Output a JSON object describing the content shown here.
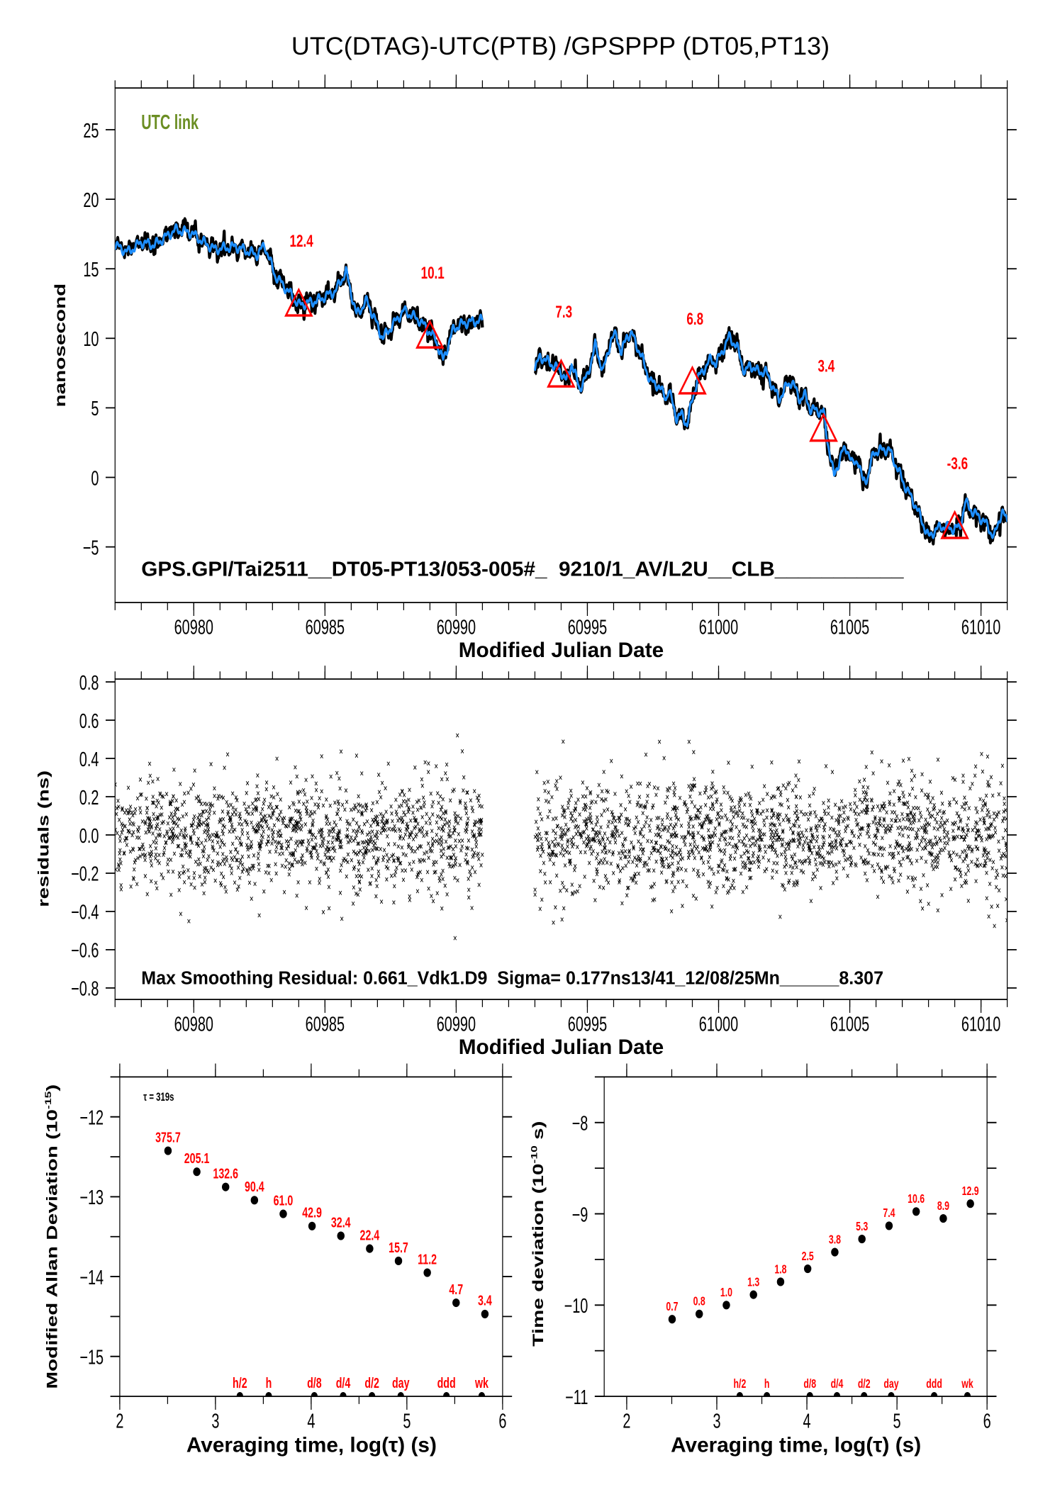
{
  "title": "UTC(DTAG)-UTC(PTB)  /GPSPPP  (DT05,PT13)",
  "colors": {
    "curve": "#1e8fff",
    "raw": "#000000",
    "annotation": "#ff0000",
    "link_label": "#6b8e23"
  },
  "chart_data": [
    {
      "type": "line",
      "id": "time-series",
      "legend_text": "UTC link",
      "footer_text": "GPS.GPI/Tai2511__DT05-PT13/053-005#_  9210/1_AV/L2U__CLB___________",
      "xlabel": "Modified Julian Date",
      "ylabel": "nanosecond",
      "xlim": [
        60977,
        61011
      ],
      "ylim": [
        -9,
        28
      ],
      "x_ticks": [
        60980,
        60985,
        60990,
        60995,
        61000,
        61005,
        61010
      ],
      "x_tick_labels": [
        "60980",
        "60985",
        "60990",
        "60995",
        "61000",
        "61005",
        "61010"
      ],
      "x_minor_step": 1,
      "y_ticks": [
        -5,
        0,
        5,
        10,
        15,
        20,
        25
      ],
      "y_tick_labels": [
        "−5",
        "0",
        "5",
        "10",
        "15",
        "20",
        "25"
      ],
      "series": [
        {
          "name": "smoothed segment 1",
          "points": [
            [
              60977.0,
              16.7
            ],
            [
              60977.5,
              16.2
            ],
            [
              60978.0,
              16.9
            ],
            [
              60978.5,
              16.7
            ],
            [
              60979.3,
              17.8
            ],
            [
              60979.9,
              17.6
            ],
            [
              60980.3,
              17.0
            ],
            [
              60980.8,
              16.4
            ],
            [
              60981.6,
              16.6
            ],
            [
              60982.4,
              16.0
            ],
            [
              60982.7,
              16.7
            ],
            [
              60983.1,
              14.5
            ],
            [
              60983.6,
              13.4
            ],
            [
              60984.0,
              12.4
            ],
            [
              60984.7,
              12.7
            ],
            [
              60985.4,
              13.4
            ],
            [
              60985.8,
              14.8
            ],
            [
              60986.2,
              11.7
            ],
            [
              60986.6,
              12.7
            ],
            [
              60987.2,
              10.0
            ],
            [
              60988.0,
              12.0
            ],
            [
              60988.6,
              11.3
            ],
            [
              60989.2,
              10.0
            ],
            [
              60989.5,
              8.4
            ],
            [
              60989.9,
              10.7
            ],
            [
              60990.3,
              11.1
            ],
            [
              60991.0,
              11.3
            ]
          ]
        },
        {
          "name": "smoothed segment 2",
          "points": [
            [
              60993.0,
              7.8
            ],
            [
              60993.2,
              8.7
            ],
            [
              60993.6,
              8.2
            ],
            [
              60994.0,
              7.6
            ],
            [
              60994.2,
              6.9
            ],
            [
              60994.4,
              8.2
            ],
            [
              60994.7,
              6.4
            ],
            [
              60995.0,
              7.3
            ],
            [
              60995.3,
              9.5
            ],
            [
              60995.6,
              7.6
            ],
            [
              60995.9,
              9.9
            ],
            [
              60996.1,
              10.3
            ],
            [
              60996.3,
              8.9
            ],
            [
              60996.5,
              10.2
            ],
            [
              60996.7,
              10.3
            ],
            [
              60997.1,
              8.5
            ],
            [
              60997.4,
              6.9
            ],
            [
              60997.7,
              6.6
            ],
            [
              60998.0,
              5.7
            ],
            [
              60998.1,
              6.3
            ],
            [
              60998.4,
              4.3
            ],
            [
              60998.6,
              4.5
            ],
            [
              60998.8,
              3.8
            ],
            [
              60999.0,
              5.6
            ],
            [
              60999.2,
              7.1
            ],
            [
              60999.7,
              8.5
            ],
            [
              60999.9,
              8.2
            ],
            [
              61000.1,
              8.9
            ],
            [
              61000.4,
              10.1
            ],
            [
              61000.7,
              9.4
            ],
            [
              61001.0,
              7.5
            ],
            [
              61001.2,
              8.1
            ],
            [
              61001.5,
              7.6
            ],
            [
              61001.8,
              7.6
            ],
            [
              61002.0,
              6.8
            ],
            [
              61002.3,
              5.6
            ],
            [
              61002.6,
              6.6
            ],
            [
              61002.8,
              6.9
            ],
            [
              61003.1,
              5.6
            ],
            [
              61003.3,
              5.9
            ],
            [
              61003.5,
              4.9
            ],
            [
              61004.0,
              4.7
            ],
            [
              61004.1,
              3.2
            ],
            [
              61004.4,
              0.05
            ],
            [
              61004.7,
              1.8
            ],
            [
              61004.9,
              2.1
            ],
            [
              61005.1,
              0.9
            ],
            [
              61005.3,
              1.3
            ],
            [
              61005.5,
              -0.3
            ],
            [
              61005.7,
              0.05
            ],
            [
              61005.9,
              1.8
            ],
            [
              61006.3,
              2.0
            ],
            [
              61006.5,
              2.0
            ],
            [
              61006.8,
              0.7
            ],
            [
              61007.1,
              -0.6
            ],
            [
              61007.5,
              -2.0
            ],
            [
              61007.7,
              -2.9
            ],
            [
              61008.0,
              -4.3
            ],
            [
              61008.2,
              -3.9
            ],
            [
              61008.5,
              -3.5
            ],
            [
              61008.9,
              -3.7
            ],
            [
              61009.2,
              -3.6
            ],
            [
              61009.4,
              -1.8
            ],
            [
              61009.7,
              -2.5
            ],
            [
              61010.1,
              -3.1
            ],
            [
              61010.5,
              -4.3
            ],
            [
              61010.8,
              -2.4
            ],
            [
              61011.0,
              -3.2
            ]
          ]
        }
      ],
      "markers": [
        {
          "mjd": 60984,
          "value": 12.4,
          "label": "12.4"
        },
        {
          "mjd": 60989,
          "value": 10.1,
          "label": "10.1"
        },
        {
          "mjd": 60994,
          "value": 7.3,
          "label": "7.3"
        },
        {
          "mjd": 60999,
          "value": 6.8,
          "label": "6.8"
        },
        {
          "mjd": 61004,
          "value": 3.4,
          "label": "3.4"
        },
        {
          "mjd": 61009,
          "value": -3.6,
          "label": "-3.6"
        }
      ]
    },
    {
      "type": "scatter",
      "id": "residuals",
      "footer_text": "Max Smoothing Residual: 0.661_Vdk1.D9  Sigma= 0.177ns13/41_12/08/25Mn______8.307",
      "xlabel": "Modified Julian Date",
      "ylabel": "residuals (ns)",
      "xlim": [
        60977,
        61011
      ],
      "ylim": [
        -0.86,
        0.815
      ],
      "x_ticks": [
        60980,
        60985,
        60990,
        60995,
        61000,
        61005,
        61010
      ],
      "x_tick_labels": [
        "60980",
        "60985",
        "60990",
        "60995",
        "61000",
        "61005",
        "61010"
      ],
      "x_minor_step": 1,
      "y_ticks": [
        -0.8,
        -0.6,
        -0.4,
        -0.2,
        0.0,
        0.2,
        0.4,
        0.6,
        0.8
      ],
      "y_tick_labels": [
        "−0.8",
        "−0.6",
        "−0.4",
        "−0.2",
        "0.0",
        "0.2",
        "0.4",
        "0.6",
        "0.8"
      ],
      "segments": [
        [
          60977,
          60991
        ],
        [
          60993,
          61011
        ]
      ],
      "sigma_ns": 0.177,
      "max_abs_ns": 0.661
    },
    {
      "type": "scatter",
      "id": "mod-allan-deviation",
      "note_text": "τ = 319s",
      "xlabel": "Averaging time, log(τ) (s)",
      "ylabel_main": "Modified Allan Deviation (10",
      "ylabel_sup": "-15",
      "ylabel_end": ")",
      "xlim": [
        2,
        6
      ],
      "ylim": [
        -15.5,
        -11.5
      ],
      "x_ticks": [
        2,
        3,
        4,
        5,
        6
      ],
      "x_tick_labels": [
        "2",
        "3",
        "4",
        "5",
        "6"
      ],
      "x_minor_step": 0.5,
      "y_ticks": [
        -15,
        -14,
        -13,
        -12
      ],
      "y_tick_labels": [
        "−15",
        "−14",
        "−13",
        "−12"
      ],
      "y_minor_step": 0.5,
      "x": [
        2.504,
        2.805,
        3.106,
        3.407,
        3.708,
        4.009,
        4.31,
        4.611,
        4.912,
        5.213,
        5.514,
        5.815
      ],
      "y": [
        -12.425,
        -12.688,
        -12.878,
        -13.044,
        -13.215,
        -13.368,
        -13.49,
        -13.65,
        -13.804,
        -13.951,
        -14.328,
        -14.469
      ],
      "labels": [
        "375.7",
        "205.1",
        "132.6",
        "90.4",
        "61.0",
        "42.9",
        "32.4",
        "22.4",
        "15.7",
        "11.2",
        "4.7",
        "3.4"
      ],
      "time_markers": [
        {
          "x": 3.255,
          "label": "h/2"
        },
        {
          "x": 3.556,
          "label": "h"
        },
        {
          "x": 4.033,
          "label": "d/8"
        },
        {
          "x": 4.334,
          "label": "d/4"
        },
        {
          "x": 4.635,
          "label": "d/2"
        },
        {
          "x": 4.936,
          "label": "day"
        },
        {
          "x": 5.413,
          "label": "ddd"
        },
        {
          "x": 5.782,
          "label": "wk"
        }
      ]
    },
    {
      "type": "scatter",
      "id": "time-deviation",
      "xlabel": "Averaging time, log(τ) (s)",
      "ylabel_main": "Time deviation (10",
      "ylabel_sup": "-10",
      "ylabel_end": " s)",
      "xlim": [
        1.75,
        6
      ],
      "ylim": [
        -11,
        -7.5
      ],
      "x_ticks": [
        2,
        3,
        4,
        5,
        6
      ],
      "x_tick_labels": [
        "2",
        "3",
        "4",
        "5",
        "6"
      ],
      "x_minor_step": 0.5,
      "y_ticks": [
        -11,
        -10,
        -9,
        -8
      ],
      "y_tick_labels": [
        "−11",
        "−10",
        "−9",
        "−8"
      ],
      "y_minor_step": 0.5,
      "x": [
        2.504,
        2.805,
        3.106,
        3.407,
        3.708,
        4.009,
        4.31,
        4.611,
        4.912,
        5.213,
        5.514,
        5.815
      ],
      "y": [
        -10.155,
        -10.097,
        -10.0,
        -9.886,
        -9.745,
        -9.602,
        -9.42,
        -9.276,
        -9.131,
        -8.975,
        -9.051,
        -8.889
      ],
      "labels": [
        "0.7",
        "0.8",
        "1.0",
        "1.3",
        "1.8",
        "2.5",
        "3.8",
        "5.3",
        "7.4",
        "10.6",
        "8.9",
        "12.9"
      ],
      "time_markers": [
        {
          "x": 3.255,
          "label": "h/2"
        },
        {
          "x": 3.556,
          "label": "h"
        },
        {
          "x": 4.033,
          "label": "d/8"
        },
        {
          "x": 4.334,
          "label": "d/4"
        },
        {
          "x": 4.635,
          "label": "d/2"
        },
        {
          "x": 4.936,
          "label": "day"
        },
        {
          "x": 5.413,
          "label": "ddd"
        },
        {
          "x": 5.782,
          "label": "wk"
        }
      ]
    }
  ]
}
